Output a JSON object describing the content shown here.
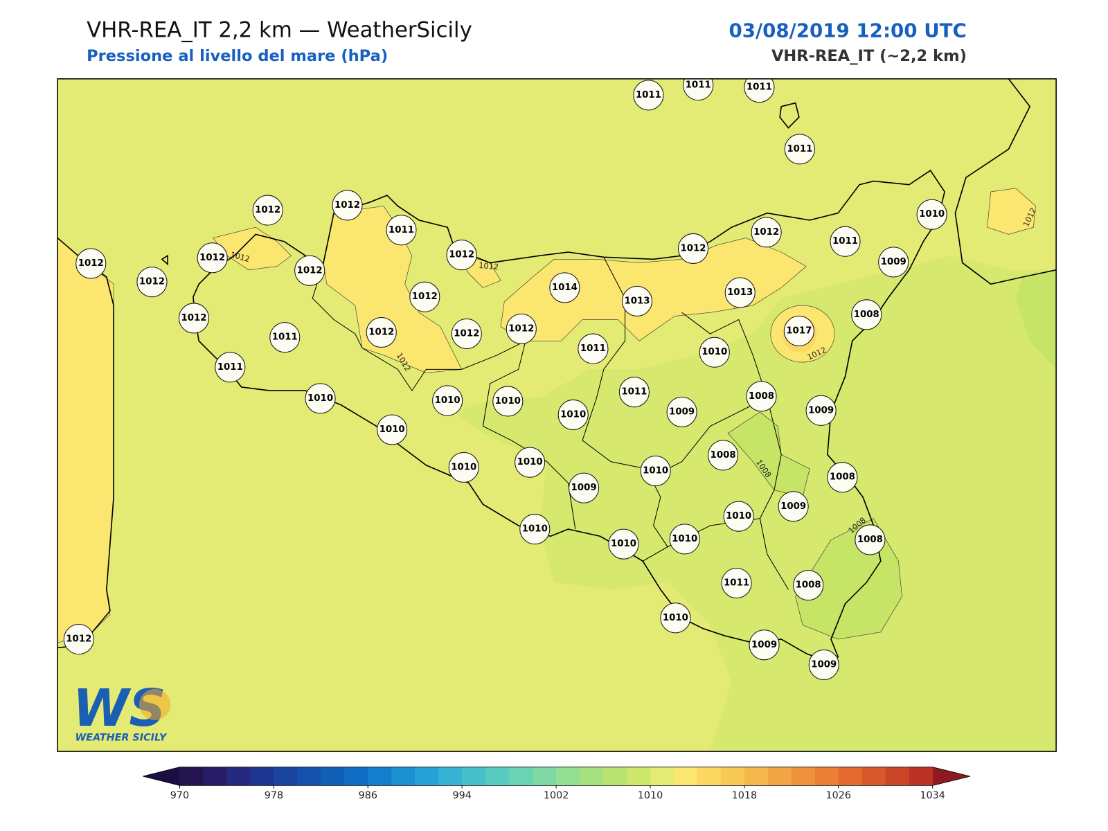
{
  "header": {
    "title": "VHR-REA_IT 2,2 km — WeatherSicily",
    "subtitle": "Pressione al livello del mare (hPa)",
    "datetime": "03/08/2019 12:00 UTC",
    "model": "VHR-REA_IT (~2,2 km)"
  },
  "map": {
    "stations": [
      1011,
      1011,
      1011,
      1011,
      1012,
      1012,
      1011,
      1012,
      1012,
      1012,
      1012,
      1012,
      1012,
      1012,
      1011,
      1012,
      1012,
      1012,
      1014,
      1013,
      1012,
      1012,
      1011,
      1010,
      1009,
      1013,
      1008,
      1017,
      1010,
      1011,
      1011,
      1010,
      1010,
      1010,
      1010,
      1011,
      1009,
      1008,
      1009,
      1010,
      1010,
      1010,
      1008,
      1010,
      1008,
      1009,
      1009,
      1010,
      1010,
      1010,
      1010,
      1008,
      1011,
      1008,
      1010,
      1009,
      1009,
      1012
    ],
    "contour_labels": [
      1012,
      1012,
      1012,
      1012,
      1012,
      1008,
      1008
    ]
  },
  "colorbar": {
    "ticks": [
      970,
      978,
      986,
      994,
      1002,
      1010,
      1018,
      1026,
      1034
    ],
    "colors": [
      "#241450",
      "#281c66",
      "#252a7e",
      "#1e3690",
      "#1a449f",
      "#1552ad",
      "#1160b8",
      "#0f6ec3",
      "#127ecc",
      "#1b8fd2",
      "#27a0d6",
      "#35b2d4",
      "#47c0cb",
      "#58cbc0",
      "#6ad3b3",
      "#7ed9a5",
      "#93de92",
      "#a7e17f",
      "#b9e370",
      "#cde66c",
      "#e3eb74",
      "#fbe670",
      "#fcd862",
      "#f9c955",
      "#f6b84c",
      "#f2a544",
      "#ee933c",
      "#ea7f35",
      "#e36a2f",
      "#d8572b",
      "#ca4428",
      "#bb3126"
    ],
    "under_color": "#1c0e45",
    "over_color": "#8b1b1f"
  },
  "logo": {
    "mark": "WS",
    "name": "WEATHER SICILY"
  }
}
